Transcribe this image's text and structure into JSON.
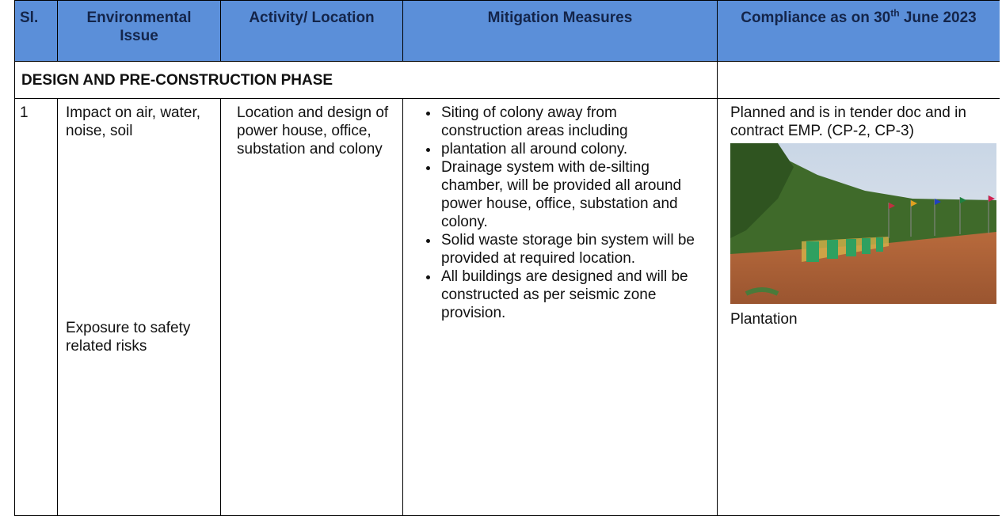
{
  "table": {
    "headers": [
      "Sl.",
      "Environmental Issue",
      "Activity/ Location",
      "Mitigation Measures",
      {
        "text": "Compliance as on 30",
        "sup": "th",
        "tail": " June 2023"
      }
    ],
    "section": "DESIGN AND PRE-CONSTRUCTION PHASE",
    "rows": [
      {
        "sl": "1",
        "issues": [
          "Impact on air, water, noise, soil",
          "Exposure to safety related risks"
        ],
        "activity": "Location and design of power house, office, substation and colony",
        "measures": [
          "Siting of colony away from construction areas including",
          "plantation all around colony.",
          "Drainage system with de-silting chamber, will be provided all around power house, office, substation and colony.",
          "Solid waste storage bin system will be provided at required location.",
          "All buildings are designed and will be constructed as per seismic zone provision."
        ],
        "compliance": {
          "text": "Planned and is in tender doc and in contract EMP. (CP-2, CP-3)",
          "caption": "Plantation"
        }
      }
    ]
  }
}
